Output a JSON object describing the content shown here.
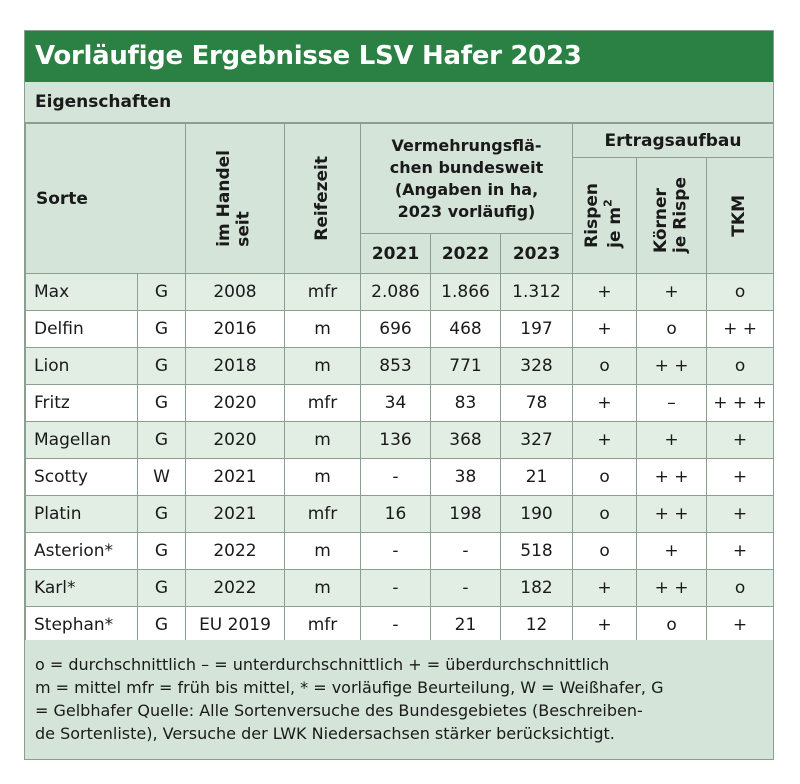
{
  "title": "Vorläufige Ergebnisse LSV Hafer 2023",
  "section_label": "Eigenschaften",
  "headers": {
    "sorte": "Sorte",
    "im_handel_line1": "im Handel",
    "im_handel_line2": "seit",
    "reifezeit": "Reifezeit",
    "vermehrung_line1": "Vermehrungsflä-",
    "vermehrung_line2": "chen bundesweit",
    "vermehrung_line3": "(Angaben in ha,",
    "vermehrung_line4": "2023 vorläufig)",
    "ertragsaufbau": "Ertragsaufbau",
    "year1": "2021",
    "year2": "2022",
    "year3": "2023",
    "rispen_line1": "Rispen",
    "rispen_line2": "je m",
    "rispen_sup": "2",
    "koerner_line1": "Körner",
    "koerner_line2": "je Rispe",
    "tkm": "TKM"
  },
  "rows": [
    {
      "sorte": "Max",
      "typ": "G",
      "seit": "2008",
      "reife": "mfr",
      "y2021": "2.086",
      "y2022": "1.866",
      "y2023": "1.312",
      "rispen": "+",
      "koerner": "+",
      "tkm": "o"
    },
    {
      "sorte": "Delfin",
      "typ": "G",
      "seit": "2016",
      "reife": "m",
      "y2021": "696",
      "y2022": "468",
      "y2023": "197",
      "rispen": "+",
      "koerner": "o",
      "tkm": "+ +"
    },
    {
      "sorte": "Lion",
      "typ": "G",
      "seit": "2018",
      "reife": "m",
      "y2021": "853",
      "y2022": "771",
      "y2023": "328",
      "rispen": "o",
      "koerner": "+ +",
      "tkm": "o"
    },
    {
      "sorte": "Fritz",
      "typ": "G",
      "seit": "2020",
      "reife": "mfr",
      "y2021": "34",
      "y2022": "83",
      "y2023": "78",
      "rispen": "+",
      "koerner": "–",
      "tkm": "+ + +"
    },
    {
      "sorte": "Magellan",
      "typ": "G",
      "seit": "2020",
      "reife": "m",
      "y2021": "136",
      "y2022": "368",
      "y2023": "327",
      "rispen": "+",
      "koerner": "+",
      "tkm": "+"
    },
    {
      "sorte": "Scotty",
      "typ": "W",
      "seit": "2021",
      "reife": "m",
      "y2021": "-",
      "y2022": "38",
      "y2023": "21",
      "rispen": "o",
      "koerner": "+ +",
      "tkm": "+"
    },
    {
      "sorte": "Platin",
      "typ": "G",
      "seit": "2021",
      "reife": "mfr",
      "y2021": "16",
      "y2022": "198",
      "y2023": "190",
      "rispen": "o",
      "koerner": "+ +",
      "tkm": "+"
    },
    {
      "sorte": "Asterion*",
      "typ": "G",
      "seit": "2022",
      "reife": "m",
      "y2021": "-",
      "y2022": "-",
      "y2023": "518",
      "rispen": "o",
      "koerner": "+",
      "tkm": "+"
    },
    {
      "sorte": "Karl*",
      "typ": "G",
      "seit": "2022",
      "reife": "m",
      "y2021": "-",
      "y2022": "-",
      "y2023": "182",
      "rispen": "+",
      "koerner": "+ +",
      "tkm": "o"
    },
    {
      "sorte": "Stephan*",
      "typ": "G",
      "seit": "EU 2019",
      "reife": "mfr",
      "y2021": "-",
      "y2022": "21",
      "y2023": "12",
      "rispen": "+",
      "koerner": "o",
      "tkm": "+"
    }
  ],
  "legend": {
    "line1": "o = durchschnittlich    – = unterdurchschnittlich    + = überdurchschnittlich",
    "line2": "m = mittel    mfr = früh bis mittel, * = vorläufige Beurteilung, W = Weißhafer, G",
    "line3": "= Gelbhafer    Quelle: Alle Sortenversuche des Bundesgebietes (Beschreiben-",
    "line4": "de Sortenliste), Versuche der LWK Niedersachsen stärker berücksichtigt."
  },
  "colors": {
    "title_bg": "#2b8044",
    "header_bg": "#d5e4d8",
    "stripe_bg": "#e2ede4",
    "border": "#8a9f8f"
  }
}
